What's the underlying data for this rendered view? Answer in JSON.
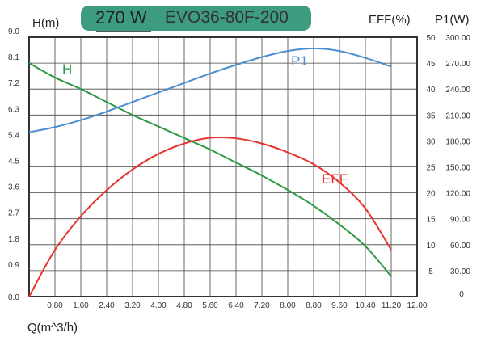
{
  "title": {
    "power": "270 W",
    "model": "EVO36-80F-200",
    "box_color": "#3d9c80"
  },
  "chart_data": {
    "type": "line",
    "xlabel": "Q(m^3/h)",
    "ylabel_left": "H(m)",
    "ylabel_right1": "EFF(%)",
    "ylabel_right2": "P1(W)",
    "xlim": [
      0,
      12
    ],
    "ylim_left": [
      0,
      9
    ],
    "ylim_eff": [
      0,
      50
    ],
    "ylim_p1": [
      0,
      300
    ],
    "grid": true,
    "x_ticks": [
      "0.80",
      "1.60",
      "2.40",
      "3.20",
      "4.00",
      "4.80",
      "5.60",
      "6.40",
      "7.20",
      "8.00",
      "8.80",
      "9.60",
      "10.40",
      "11.20",
      "12.00"
    ],
    "y_ticks_left": [
      "0.0",
      "0.9",
      "1.8",
      "2.7",
      "3.6",
      "4.5",
      "5.4",
      "6.3",
      "7.2",
      "8.1",
      "9.0"
    ],
    "y_ticks_eff": [
      "0",
      "5",
      "10",
      "15",
      "20",
      "25",
      "30",
      "35",
      "40",
      "45",
      "50"
    ],
    "y_ticks_p1": [
      "0",
      "30.00",
      "60.00",
      "90.00",
      "120.00",
      "150.00",
      "180.00",
      "210.00",
      "240.00",
      "270.00",
      "300.00"
    ],
    "x": [
      0,
      0.8,
      1.6,
      2.4,
      3.2,
      4.0,
      4.8,
      5.6,
      6.4,
      7.2,
      8.0,
      8.8,
      9.6,
      10.4,
      11.2
    ],
    "series": [
      {
        "name": "H",
        "axis": "left",
        "color": "#2e9a45",
        "values": [
          8.1,
          7.6,
          7.2,
          6.75,
          6.3,
          5.9,
          5.5,
          5.1,
          4.65,
          4.2,
          3.7,
          3.15,
          2.5,
          1.75,
          0.7
        ]
      },
      {
        "name": "EFF",
        "axis": "eff",
        "color": "#e8332f",
        "values": [
          0,
          9,
          15.5,
          20.5,
          24.5,
          27.5,
          29.5,
          30.6,
          30.5,
          29.5,
          27.8,
          25.5,
          22,
          17,
          9
        ]
      },
      {
        "name": "P1",
        "axis": "p1",
        "color": "#4a8ed0",
        "values": [
          190,
          196,
          204,
          214,
          225,
          236,
          247,
          258,
          268,
          277,
          284,
          287,
          284,
          276,
          266
        ]
      }
    ]
  }
}
